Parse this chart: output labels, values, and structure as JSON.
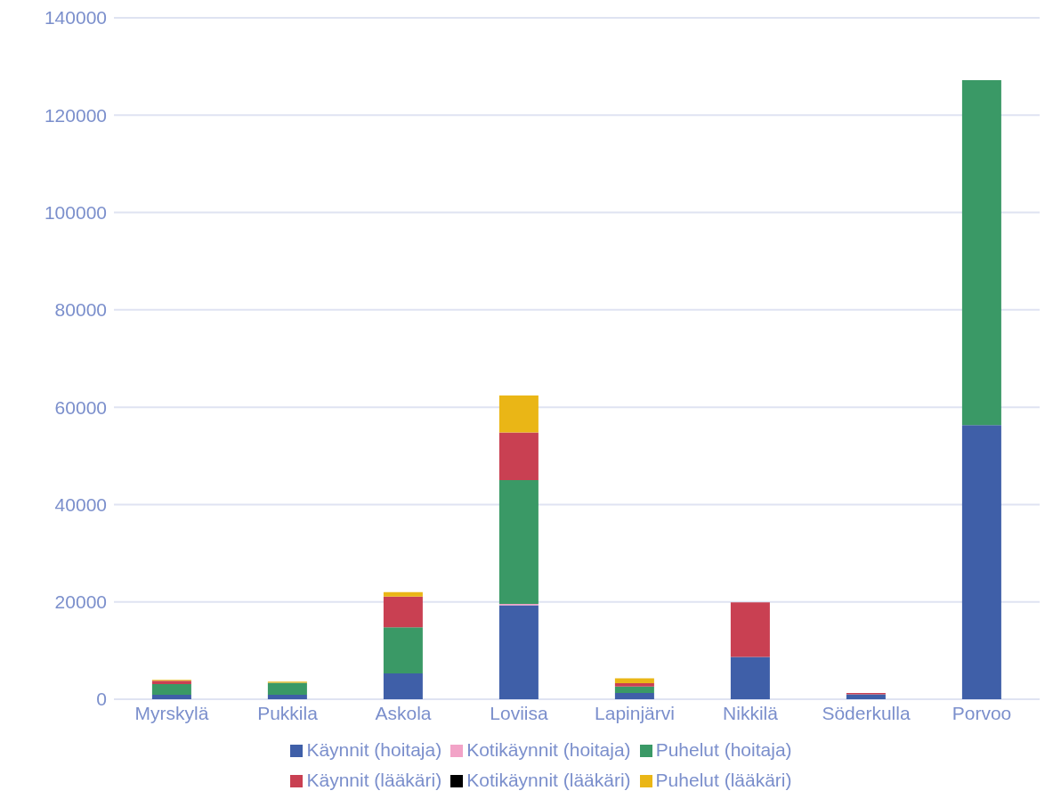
{
  "chart_data": {
    "type": "bar",
    "stacked": true,
    "categories": [
      "Myrskylä",
      "Pukkila",
      "Askola",
      "Loviisa",
      "Lapinjärvi",
      "Nikkilä",
      "Söderkulla",
      "Porvoo"
    ],
    "series": [
      {
        "name": "Käynnit (hoitaja)",
        "color": "#3f5fa8",
        "values": [
          900,
          900,
          5300,
          19300,
          1300,
          8700,
          1000,
          56300
        ]
      },
      {
        "name": "Kotikäynnit (hoitaja)",
        "color": "#f2a3c7",
        "values": [
          0,
          0,
          0,
          300,
          0,
          0,
          0,
          0
        ]
      },
      {
        "name": "Puhelut (hoitaja)",
        "color": "#3a9966",
        "values": [
          2200,
          2500,
          9500,
          25400,
          1300,
          0,
          0,
          70900
        ]
      },
      {
        "name": "Käynnit (lääkäri)",
        "color": "#c94052",
        "values": [
          700,
          null,
          6300,
          9800,
          700,
          11200,
          300,
          0
        ]
      },
      {
        "name": "Kotikäynnit (lääkäri)",
        "color": "#000000",
        "values": [
          0,
          0,
          0,
          0,
          0,
          0,
          0,
          0
        ]
      },
      {
        "name": "Puhelut (lääkäri)",
        "color": "#eab616",
        "values": [
          200,
          200,
          900,
          7600,
          1000,
          0,
          0,
          0
        ]
      }
    ],
    "ylim": [
      0,
      140000
    ],
    "yticks": [
      0,
      20000,
      40000,
      60000,
      80000,
      100000,
      120000,
      140000
    ],
    "grid": "y",
    "legend": "bottom"
  }
}
